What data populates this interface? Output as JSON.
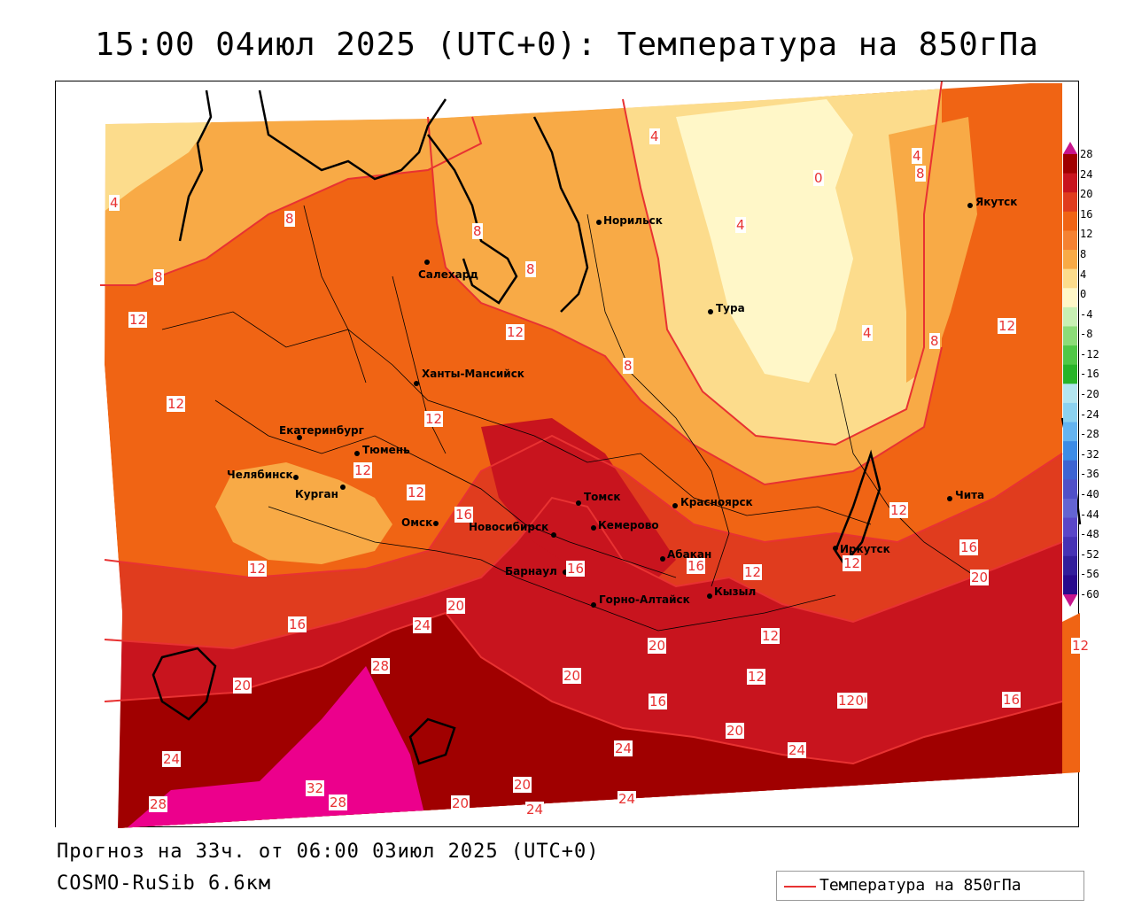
{
  "title": "15:00 04июл 2025 (UTC+0): Температура на 850гПа",
  "footer": {
    "forecast": "Прогноз на 33ч. от 06:00 03июл 2025 (UTC+0)",
    "model": "COSMO-RuSib 6.6км"
  },
  "legend": {
    "label": "Температура на 850гПа",
    "line_color": "#e83232"
  },
  "colors": {
    "c28": "#ec008c",
    "c24": "#a00000",
    "c20": "#c8141e",
    "c16": "#e03c1e",
    "c12": "#f06414",
    "c8": "#f8aa46",
    "c4": "#fcdc8c",
    "c0": "#fff7c8",
    "isotherm": "#e83232"
  },
  "cities": [
    {
      "name": "Норильск"
    },
    {
      "name": "Якутск"
    },
    {
      "name": "Салехард"
    },
    {
      "name": "Тура"
    },
    {
      "name": "Ханты-Мансийск"
    },
    {
      "name": "Екатеринбург"
    },
    {
      "name": "Тюмень"
    },
    {
      "name": "Челябинск"
    },
    {
      "name": "Курган"
    },
    {
      "name": "Омск"
    },
    {
      "name": "Новосибирск"
    },
    {
      "name": "Томск"
    },
    {
      "name": "Кемерово"
    },
    {
      "name": "Красноярск"
    },
    {
      "name": "Барнаул"
    },
    {
      "name": "Абакан"
    },
    {
      "name": "Кызыл"
    },
    {
      "name": "Горно-Алтайск"
    },
    {
      "name": "Иркутск"
    },
    {
      "name": "Чита"
    }
  ],
  "isotherm_labels": [
    "4",
    "8",
    "4",
    "0",
    "4",
    "8",
    "8",
    "8",
    "4",
    "8",
    "12",
    "4",
    "8",
    "12",
    "12",
    "12",
    "12",
    "12",
    "12",
    "12",
    "16",
    "8",
    "12",
    "16",
    "16",
    "12",
    "12",
    "16",
    "12",
    "20",
    "16",
    "20",
    "24",
    "20",
    "28",
    "20",
    "20",
    "20",
    "16",
    "24",
    "24",
    "16",
    "12",
    "20",
    "24",
    "20",
    "20",
    "28",
    "32",
    "28",
    "24",
    "20",
    "24",
    "12",
    "12"
  ],
  "scale": {
    "ticks": [
      "28",
      "24",
      "20",
      "16",
      "12",
      "8",
      "4",
      "0",
      "-4",
      "-8",
      "-12",
      "-16",
      "-20",
      "-24",
      "-28",
      "-32",
      "-36",
      "-40",
      "-44",
      "-48",
      "-52",
      "-56",
      "-60"
    ],
    "colors": [
      "#a00000",
      "#c8141e",
      "#e03c1e",
      "#f06414",
      "#f58232",
      "#f8aa46",
      "#fcdc8c",
      "#fff7c8",
      "#c8f0b4",
      "#8cdc78",
      "#50c846",
      "#28b428",
      "#b4e6f0",
      "#8cd2f0",
      "#64b4f0",
      "#3c8ce6",
      "#3c64d2",
      "#5050c8",
      "#6464d2",
      "#5a46c8",
      "#4632b4",
      "#321e9b",
      "#280a8c"
    ]
  }
}
